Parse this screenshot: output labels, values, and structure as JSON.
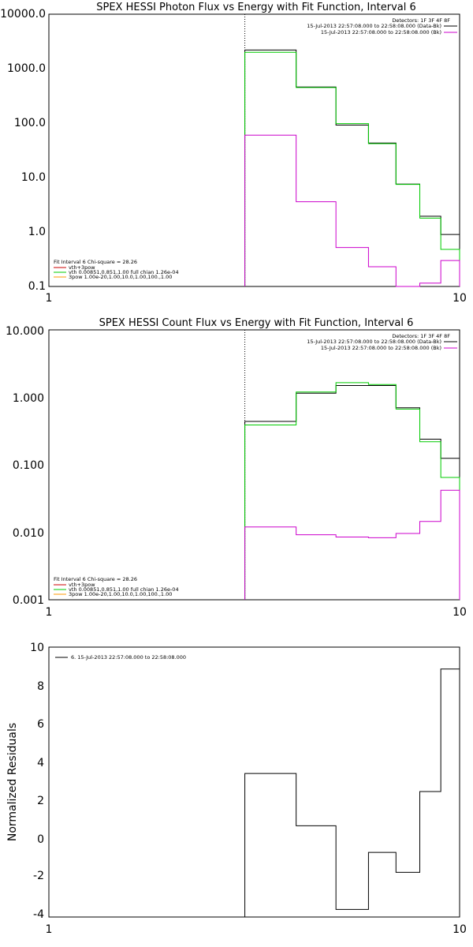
{
  "colors": {
    "black": "#000000",
    "green": "#00cc00",
    "magenta": "#cc00cc",
    "orange": "#ff9900",
    "red": "#cc0000"
  },
  "chart_data": [
    {
      "type": "line",
      "title": "SPEX HESSI Photon Flux vs Energy with Fit Function, Interval 6",
      "xscale": "log",
      "yscale": "log",
      "xlim": [
        1,
        10
      ],
      "ylim": [
        0.1,
        10000
      ],
      "xticks": [
        "1",
        "10"
      ],
      "yticks": [
        "0.1",
        "1.0",
        "10.0",
        "100.0",
        "1000.0",
        "10000.0"
      ],
      "vline_x": 3,
      "bin_edges": [
        3,
        4,
        5,
        6,
        7,
        8,
        9,
        10
      ],
      "series": [
        {
          "color": "black",
          "values": [
            2200,
            460,
            92,
            43,
            7.6,
            1.95,
            0.9
          ]
        },
        {
          "color": "green",
          "values": [
            2000,
            450,
            98,
            42,
            7.5,
            1.8,
            0.48
          ]
        },
        {
          "color": "magenta",
          "values": [
            60,
            3.6,
            0.52,
            0.23,
            0.095,
            0.115,
            0.3
          ]
        }
      ],
      "detectors": "Detectors: 1F 3F 4F 8F",
      "legend_top": [
        {
          "text": "15-Jul-2013 22:57:08.000 to 22:58:08.000 (Data-Bk)",
          "color": "black"
        },
        {
          "text": "15-Jul-2013 22:57:08.000 to 22:58:08.000 (Bk)",
          "color": "magenta"
        }
      ],
      "fit_header": "Fit Interval 6   Chi-square = 28.26",
      "legend_bottom": [
        {
          "text": "vth+3pow",
          "color": "red"
        },
        {
          "text": "vth 0.00851,0.851,1.00  full chian 1.26e-04",
          "color": "green"
        },
        {
          "text": "3pow 1.00e-20,1.00,10.0,1.00,100.,1.00",
          "color": "orange"
        }
      ]
    },
    {
      "type": "line",
      "title": "SPEX HESSI Count Flux vs Energy with Fit Function, Interval 6",
      "xscale": "log",
      "yscale": "log",
      "xlim": [
        1,
        10
      ],
      "ylim": [
        0.001,
        10
      ],
      "xticks": [
        "1",
        "10"
      ],
      "yticks": [
        "0.001",
        "0.010",
        "0.100",
        "1.000",
        "10.000"
      ],
      "vline_x": 3,
      "bin_edges": [
        3,
        4,
        5,
        6,
        7,
        8,
        9,
        10
      ],
      "series": [
        {
          "color": "black",
          "values": [
            0.44,
            1.15,
            1.5,
            1.5,
            0.7,
            0.24,
            0.125
          ]
        },
        {
          "color": "green",
          "values": [
            0.39,
            1.2,
            1.65,
            1.55,
            0.67,
            0.22,
            0.065
          ]
        },
        {
          "color": "magenta",
          "values": [
            0.012,
            0.0092,
            0.0085,
            0.0083,
            0.0096,
            0.0145,
            0.042
          ]
        }
      ],
      "detectors": "Detectors: 1F 3F 4F 8F",
      "legend_top": [
        {
          "text": "15-Jul-2013 22:57:08.000 to 22:58:08.000 (Data-Bk)",
          "color": "black"
        },
        {
          "text": "15-Jul-2013 22:57:08.000 to 22:58:08.000 (Bk)",
          "color": "magenta"
        }
      ],
      "fit_header": "Fit Interval 6   Chi-square = 28.26",
      "legend_bottom": [
        {
          "text": "vth+3pow",
          "color": "red"
        },
        {
          "text": "vth 0.00851,0.851,1.00  full chian 1.26e-04",
          "color": "green"
        },
        {
          "text": "3pow 1.00e-20,1.00,10.0,1.00,100.,1.00",
          "color": "orange"
        }
      ]
    },
    {
      "type": "line",
      "title": "",
      "xscale": "log",
      "yscale": "linear",
      "xlim": [
        1,
        10
      ],
      "ylim": [
        -4.2,
        10
      ],
      "ylabel": "Normalized Residuals",
      "xticks": [
        "1",
        "10"
      ],
      "yticks": [
        "-4",
        "-2",
        "0",
        "2",
        "4",
        "6",
        "8",
        "10"
      ],
      "bin_edges": [
        3,
        4,
        5,
        6,
        7,
        8,
        9,
        10
      ],
      "series": [
        {
          "color": "black",
          "values": [
            3.35,
            0.6,
            -3.8,
            -0.8,
            -1.85,
            2.4,
            8.85
          ]
        }
      ],
      "legend": [
        {
          "text": "6. 15-Jul-2013 22:57:08.000 to 22:58:08.000",
          "color": "black"
        }
      ]
    }
  ]
}
